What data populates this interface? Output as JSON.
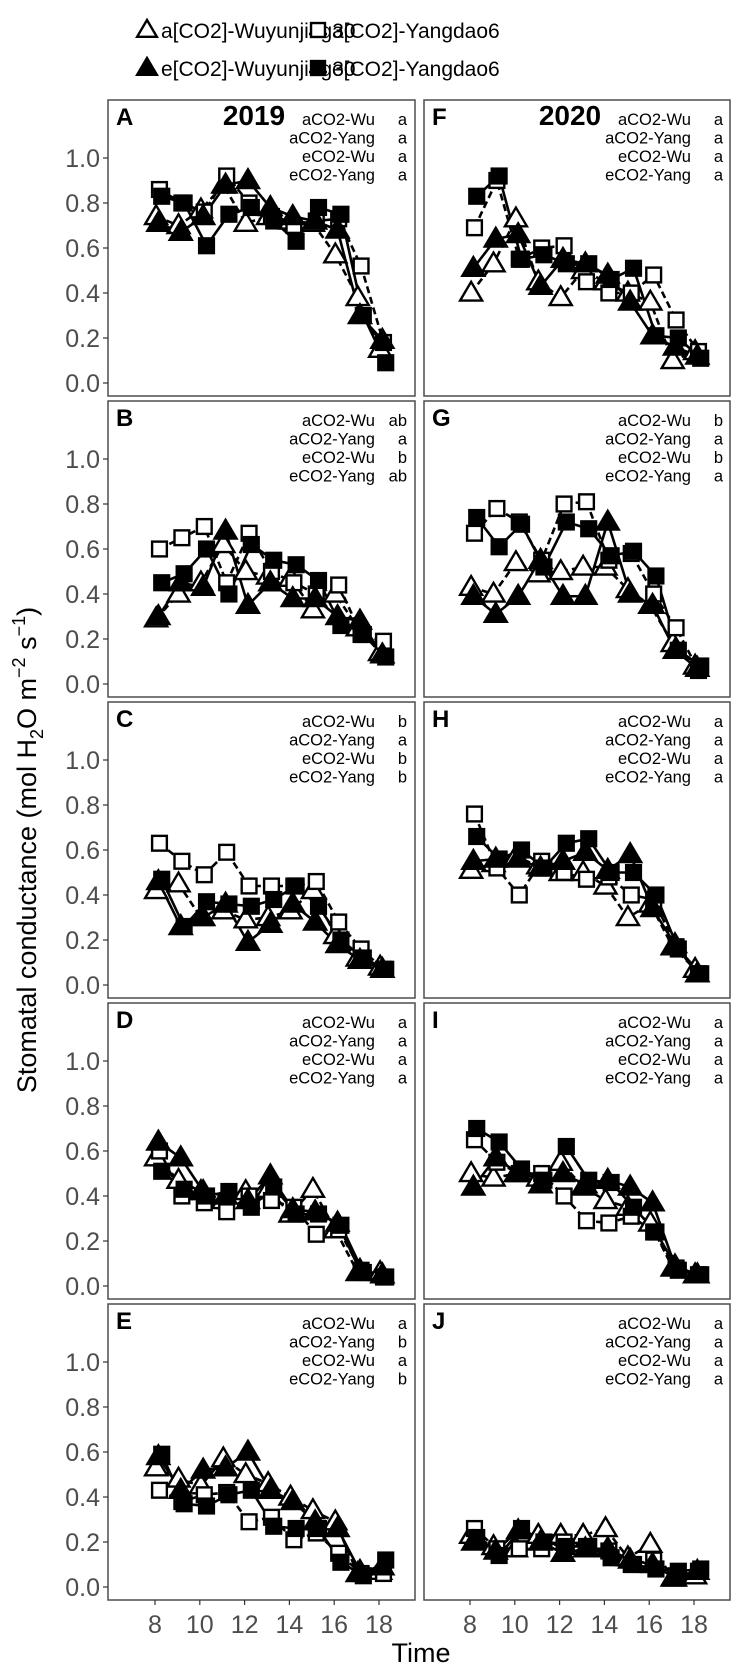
{
  "legend": [
    {
      "label": "a[CO2]-Wuyunjing30",
      "marker": "triangle-open"
    },
    {
      "label": "a[CO2]-Yangdao6",
      "marker": "square-open"
    },
    {
      "label": "e[CO2]-Wuyunjing30",
      "marker": "triangle-filled"
    },
    {
      "label": "e[CO2]-Yangdao6",
      "marker": "square-filled"
    }
  ],
  "colors": {
    "ink": "#000000",
    "tick": "#4d4d4d",
    "frame": "#4d4d4d"
  },
  "chart_data": {
    "type": "line",
    "xlabel": "Time",
    "ylabel_parts": [
      "Stomatal conductance (mol H",
      "2",
      "O m",
      "−2",
      " s",
      "−1",
      ")"
    ],
    "x": [
      8,
      9,
      10,
      11,
      12,
      13,
      14,
      15,
      16,
      17,
      18
    ],
    "xticks": [
      "8",
      "10",
      "12",
      "14",
      "16",
      "18"
    ],
    "xlim": [
      5.9,
      19.6
    ],
    "ylim": [
      -0.06,
      1.26
    ],
    "yticks": [
      "0.0",
      "0.2",
      "0.4",
      "0.6",
      "0.8",
      "1.0"
    ],
    "series_labels": [
      "aCO2-Wu",
      "aCO2-Yang",
      "eCO2-Wu",
      "eCO2-Yang"
    ],
    "panels": [
      {
        "label": "A",
        "year": "2019",
        "letters": [
          "a",
          "a",
          "a",
          "a"
        ],
        "series": [
          [
            0.74,
            0.7,
            0.77,
            0.88,
            0.71,
            0.74,
            0.72,
            0.71,
            0.57,
            0.38,
            0.15
          ],
          [
            0.86,
            0.8,
            0.76,
            0.92,
            0.8,
            0.74,
            0.7,
            0.72,
            0.73,
            0.52,
            0.18
          ],
          [
            0.71,
            0.67,
            0.74,
            0.88,
            0.9,
            0.78,
            0.74,
            0.72,
            0.68,
            0.3,
            0.19
          ],
          [
            0.83,
            0.8,
            0.61,
            0.75,
            0.78,
            0.72,
            0.63,
            0.78,
            0.75,
            0.3,
            0.09
          ]
        ]
      },
      {
        "label": "B",
        "letters": [
          "ab",
          "a",
          "b",
          "ab"
        ],
        "series": [
          [
            0.29,
            0.4,
            0.45,
            0.62,
            0.5,
            0.48,
            0.47,
            0.33,
            0.4,
            0.25,
            0.14
          ],
          [
            0.6,
            0.65,
            0.7,
            0.45,
            0.67,
            0.5,
            0.45,
            0.4,
            0.44,
            0.22,
            0.19
          ],
          [
            0.3,
            0.45,
            0.43,
            0.68,
            0.35,
            0.45,
            0.38,
            0.38,
            0.3,
            0.28,
            0.13
          ],
          [
            0.45,
            0.49,
            0.6,
            0.4,
            0.62,
            0.55,
            0.53,
            0.46,
            0.26,
            0.22,
            0.12
          ]
        ]
      },
      {
        "label": "C",
        "letters": [
          "b",
          "a",
          "b",
          "b"
        ],
        "series": [
          [
            0.42,
            0.45,
            0.3,
            0.33,
            0.29,
            0.3,
            0.33,
            0.42,
            0.22,
            0.12,
            0.08
          ],
          [
            0.63,
            0.55,
            0.49,
            0.59,
            0.44,
            0.44,
            0.44,
            0.46,
            0.28,
            0.16,
            0.07
          ],
          [
            0.46,
            0.26,
            0.3,
            0.36,
            0.19,
            0.27,
            0.36,
            0.28,
            0.18,
            0.11,
            0.07
          ],
          [
            0.47,
            0.26,
            0.37,
            0.36,
            0.35,
            0.38,
            0.44,
            0.35,
            0.2,
            0.12,
            0.07
          ]
        ]
      },
      {
        "label": "D",
        "letters": [
          "a",
          "a",
          "a",
          "a"
        ],
        "series": [
          [
            0.57,
            0.47,
            0.42,
            0.38,
            0.42,
            0.43,
            0.32,
            0.43,
            0.25,
            0.06,
            0.06
          ],
          [
            0.6,
            0.4,
            0.37,
            0.33,
            0.4,
            0.38,
            0.35,
            0.23,
            0.25,
            0.07,
            0.04
          ],
          [
            0.64,
            0.57,
            0.42,
            0.4,
            0.38,
            0.49,
            0.34,
            0.33,
            0.28,
            0.07,
            0.05
          ],
          [
            0.51,
            0.43,
            0.4,
            0.42,
            0.35,
            0.44,
            0.32,
            0.32,
            0.27,
            0.06,
            0.04
          ]
        ]
      },
      {
        "label": "E",
        "letters": [
          "a",
          "b",
          "a",
          "b"
        ],
        "series": [
          [
            0.53,
            0.48,
            0.45,
            0.57,
            0.5,
            0.46,
            0.4,
            0.34,
            0.29,
            0.06,
            0.07
          ],
          [
            0.43,
            0.38,
            0.41,
            0.42,
            0.29,
            0.31,
            0.21,
            0.24,
            0.15,
            0.06,
            0.06
          ],
          [
            0.58,
            0.43,
            0.52,
            0.53,
            0.6,
            0.43,
            0.38,
            0.29,
            0.26,
            0.07,
            0.09
          ],
          [
            0.59,
            0.37,
            0.36,
            0.41,
            0.43,
            0.27,
            0.26,
            0.26,
            0.11,
            0.05,
            0.12
          ]
        ]
      },
      {
        "label": "F",
        "year": "2020",
        "letters": [
          "a",
          "a",
          "a",
          "a"
        ],
        "series": [
          [
            0.4,
            0.53,
            0.73,
            0.45,
            0.38,
            0.5,
            0.45,
            0.4,
            0.36,
            0.1,
            0.14
          ],
          [
            0.69,
            0.9,
            0.55,
            0.6,
            0.61,
            0.45,
            0.4,
            0.4,
            0.48,
            0.28,
            0.14
          ],
          [
            0.51,
            0.64,
            0.66,
            0.43,
            0.55,
            0.53,
            0.48,
            0.36,
            0.21,
            0.16,
            0.12
          ],
          [
            0.83,
            0.92,
            0.55,
            0.57,
            0.53,
            0.53,
            0.46,
            0.51,
            0.21,
            0.2,
            0.11
          ]
        ]
      },
      {
        "label": "G",
        "letters": [
          "b",
          "a",
          "b",
          "a"
        ],
        "series": [
          [
            0.43,
            0.4,
            0.54,
            0.49,
            0.5,
            0.52,
            0.52,
            0.42,
            0.35,
            0.18,
            0.08
          ],
          [
            0.67,
            0.78,
            0.72,
            0.55,
            0.8,
            0.81,
            0.55,
            0.58,
            0.4,
            0.25,
            0.06
          ],
          [
            0.39,
            0.31,
            0.39,
            0.55,
            0.39,
            0.39,
            0.72,
            0.4,
            0.35,
            0.15,
            0.07
          ],
          [
            0.74,
            0.61,
            0.71,
            0.52,
            0.72,
            0.69,
            0.57,
            0.59,
            0.48,
            0.15,
            0.08
          ]
        ]
      },
      {
        "label": "H",
        "letters": [
          "a",
          "a",
          "a",
          "a"
        ],
        "series": [
          [
            0.51,
            0.54,
            0.57,
            0.53,
            0.5,
            0.5,
            0.44,
            0.3,
            0.36,
            0.17,
            0.07
          ],
          [
            0.76,
            0.52,
            0.4,
            0.55,
            0.5,
            0.47,
            0.48,
            0.4,
            0.38,
            0.17,
            0.05
          ],
          [
            0.55,
            0.56,
            0.56,
            0.52,
            0.55,
            0.59,
            0.51,
            0.58,
            0.34,
            0.18,
            0.05
          ],
          [
            0.66,
            0.56,
            0.6,
            0.52,
            0.63,
            0.65,
            0.5,
            0.5,
            0.4,
            0.16,
            0.05
          ]
        ]
      },
      {
        "label": "I",
        "letters": [
          "a",
          "a",
          "a",
          "a"
        ],
        "series": [
          [
            0.5,
            0.48,
            0.5,
            0.48,
            0.55,
            0.44,
            0.38,
            0.35,
            0.28,
            0.08,
            0.05
          ],
          [
            0.65,
            0.55,
            0.5,
            0.5,
            0.4,
            0.29,
            0.28,
            0.31,
            0.24,
            0.08,
            0.05
          ],
          [
            0.44,
            0.57,
            0.5,
            0.45,
            0.5,
            0.45,
            0.47,
            0.44,
            0.37,
            0.09,
            0.05
          ],
          [
            0.7,
            0.64,
            0.52,
            0.47,
            0.62,
            0.47,
            0.46,
            0.35,
            0.24,
            0.07,
            0.05
          ]
        ]
      },
      {
        "label": "J",
        "letters": [
          "a",
          "a",
          "a",
          "a"
        ],
        "series": [
          [
            0.23,
            0.18,
            0.17,
            0.23,
            0.23,
            0.23,
            0.26,
            0.13,
            0.19,
            0.04,
            0.05
          ],
          [
            0.26,
            0.17,
            0.17,
            0.17,
            0.2,
            0.18,
            0.16,
            0.1,
            0.12,
            0.05,
            0.07
          ],
          [
            0.2,
            0.16,
            0.25,
            0.2,
            0.15,
            0.17,
            0.17,
            0.12,
            0.1,
            0.04,
            0.07
          ],
          [
            0.22,
            0.14,
            0.26,
            0.2,
            0.18,
            0.18,
            0.13,
            0.1,
            0.08,
            0.07,
            0.08
          ]
        ]
      }
    ]
  }
}
